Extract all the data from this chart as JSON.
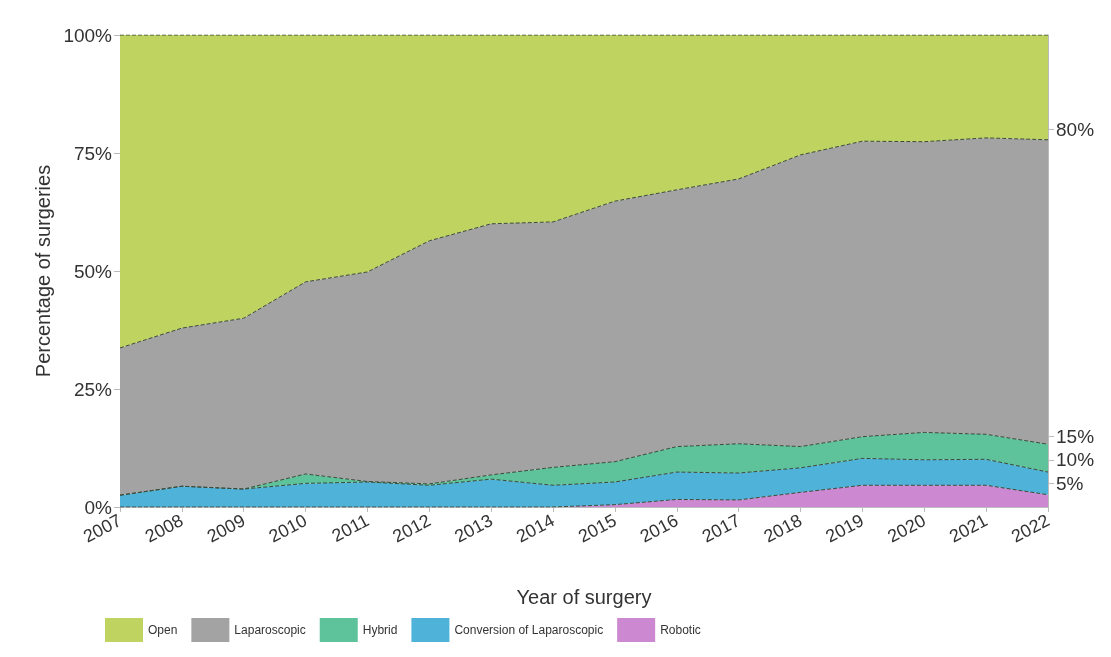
{
  "chart_data": {
    "type": "area",
    "stacked": true,
    "xlabel": "Year of surgery",
    "ylabel": "Percentage of surgeries",
    "categories": [
      "2007",
      "2008",
      "2009",
      "2010",
      "2011",
      "2012",
      "2013",
      "2014",
      "2015",
      "2016",
      "2017",
      "2018",
      "2019",
      "2020",
      "2021",
      "2022"
    ],
    "series": [
      {
        "name": "Robotic",
        "color": "#cc88d0",
        "values": [
          0,
          0,
          0,
          0,
          0,
          0,
          0,
          0,
          0.5,
          1.6,
          1.5,
          3.1,
          4.6,
          4.6,
          4.6,
          2.6
        ]
      },
      {
        "name": "Conversion of Laparoscopic",
        "color": "#4fb3d9",
        "values": [
          2.5,
          4.4,
          3.8,
          5.0,
          5.3,
          4.6,
          5.9,
          4.6,
          4.8,
          5.8,
          5.7,
          5.2,
          5.7,
          5.4,
          5.5,
          4.8
        ]
      },
      {
        "name": "Hybrid",
        "color": "#5ec29a",
        "values": [
          0,
          0,
          0,
          2.0,
          0.1,
          0.3,
          0.9,
          3.8,
          4.3,
          5.4,
          6.2,
          4.5,
          4.6,
          5.8,
          5.3,
          5.9
        ]
      },
      {
        "name": "Laparoscopic",
        "color": "#a3a3a3",
        "values": [
          31.2,
          33.5,
          36.2,
          40.7,
          44.4,
          51.5,
          53.2,
          52.0,
          55.2,
          54.4,
          56.1,
          61.8,
          62.6,
          61.6,
          62.8,
          64.5
        ]
      },
      {
        "name": "Open",
        "color": "#bfd460",
        "values": [
          66.3,
          62.1,
          60.0,
          52.3,
          50.2,
          43.6,
          40.0,
          39.6,
          35.2,
          32.8,
          30.5,
          25.4,
          22.5,
          22.6,
          21.8,
          22.2
        ]
      }
    ],
    "ylim": [
      0,
      100
    ],
    "yticks": [
      {
        "value": 0,
        "label": "0%"
      },
      {
        "value": 25,
        "label": "25%"
      },
      {
        "value": 50,
        "label": "50%"
      },
      {
        "value": 75,
        "label": "75%"
      },
      {
        "value": 100,
        "label": "100%"
      }
    ],
    "y2lim": [
      0,
      100
    ],
    "y2ticks": [
      {
        "value": 5,
        "label": "5%"
      },
      {
        "value": 10,
        "label": "10%"
      },
      {
        "value": 15,
        "label": "15%"
      },
      {
        "value": 80,
        "label": "80%"
      }
    ],
    "grid": false,
    "legend": "bottom",
    "marker": "none",
    "line_style": "dashed"
  }
}
